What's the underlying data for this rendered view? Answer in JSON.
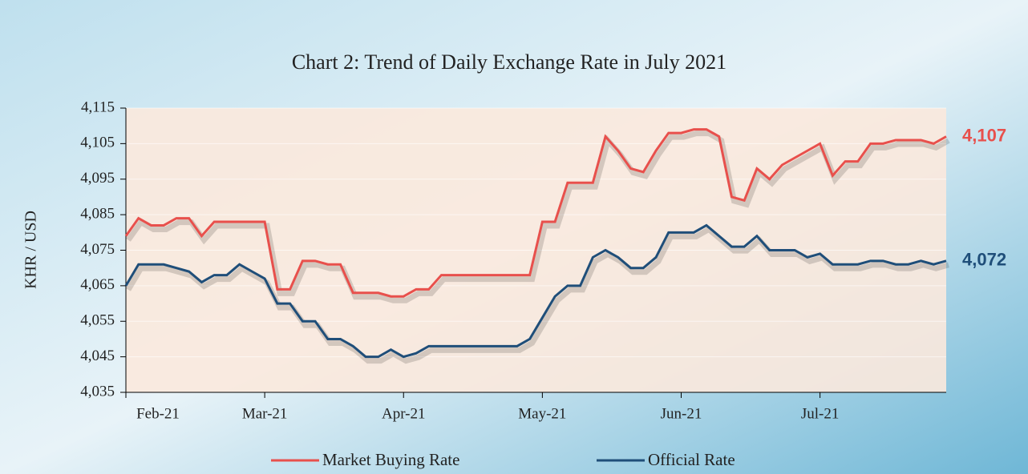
{
  "chart_data": {
    "type": "line",
    "title": "Chart 2: Trend of Daily Exchange Rate in July 2021",
    "y_label": "KHR / USD",
    "categories": [
      "Feb-21",
      null,
      null,
      null,
      null,
      null,
      null,
      null,
      null,
      null,
      null,
      "Mar-21",
      null,
      null,
      null,
      null,
      null,
      null,
      null,
      null,
      null,
      null,
      "Apr-21",
      null,
      null,
      null,
      null,
      null,
      null,
      null,
      null,
      null,
      null,
      "May-21",
      null,
      null,
      null,
      null,
      null,
      null,
      null,
      null,
      null,
      null,
      "Jun-21",
      null,
      null,
      null,
      null,
      null,
      null,
      null,
      null,
      null,
      null,
      "Jul-21",
      null,
      null,
      null,
      null,
      null,
      null,
      null,
      null,
      null,
      null
    ],
    "series": [
      {
        "name": "Market Buying Rate",
        "color": "#e8504c",
        "values": [
          4079,
          4084,
          4082,
          4082,
          4084,
          4084,
          4079,
          4083,
          4083,
          4083,
          4083,
          4083,
          4064,
          4064,
          4072,
          4072,
          4071,
          4071,
          4063,
          4063,
          4063,
          4062,
          4062,
          4064,
          4064,
          4068,
          4068,
          4068,
          4068,
          4068,
          4068,
          4068,
          4068,
          4083,
          4083,
          4094,
          4094,
          4094,
          4107,
          4103,
          4098,
          4097,
          4103,
          4108,
          4108,
          4109,
          4109,
          4107,
          4090,
          4089,
          4098,
          4095,
          4099,
          4101,
          4103,
          4105,
          4096,
          4100,
          4100,
          4105,
          4105,
          4106,
          4106,
          4106,
          4105,
          4107
        ],
        "value_labels": [
          null,
          null,
          null,
          null,
          null,
          null,
          null,
          null,
          null,
          null,
          null,
          null,
          null,
          null,
          null,
          null,
          null,
          null,
          null,
          null,
          null,
          null,
          null,
          null,
          null,
          null,
          null,
          null,
          null,
          null,
          null,
          null,
          null,
          null,
          null,
          null,
          null,
          null,
          null,
          null,
          null,
          null,
          null,
          null,
          null,
          null,
          null,
          null,
          null,
          null,
          null,
          null,
          null,
          null,
          null,
          null,
          null,
          null,
          null,
          null,
          null,
          null,
          null,
          null,
          null,
          "4,107"
        ]
      },
      {
        "name": "Official Rate",
        "color": "#1f4e79",
        "values": [
          4065,
          4071,
          4071,
          4071,
          4070,
          4069,
          4066,
          4068,
          4068,
          4071,
          4069,
          4067,
          4060,
          4060,
          4055,
          4055,
          4050,
          4050,
          4048,
          4045,
          4045,
          4047,
          4045,
          4046,
          4048,
          4048,
          4048,
          4048,
          4048,
          4048,
          4048,
          4048,
          4050,
          4056,
          4062,
          4065,
          4065,
          4073,
          4075,
          4073,
          4070,
          4070,
          4073,
          4080,
          4080,
          4080,
          4082,
          4079,
          4076,
          4076,
          4079,
          4075,
          4075,
          4075,
          4073,
          4074,
          4071,
          4071,
          4071,
          4072,
          4072,
          4071,
          4071,
          4072,
          4071,
          4072
        ],
        "value_labels": [
          null,
          null,
          null,
          null,
          null,
          null,
          null,
          null,
          null,
          null,
          null,
          null,
          null,
          null,
          null,
          null,
          null,
          null,
          null,
          null,
          null,
          null,
          null,
          null,
          null,
          null,
          null,
          null,
          null,
          null,
          null,
          null,
          null,
          null,
          null,
          null,
          null,
          null,
          null,
          null,
          null,
          null,
          null,
          null,
          null,
          null,
          null,
          null,
          null,
          null,
          null,
          null,
          null,
          null,
          null,
          null,
          null,
          null,
          null,
          null,
          null,
          null,
          null,
          null,
          null,
          "4,072"
        ]
      }
    ],
    "ylim": [
      4035,
      4115
    ],
    "yticks": [
      {
        "value": 4035,
        "label": "4,035"
      },
      {
        "value": 4045,
        "label": "4,045"
      },
      {
        "value": 4055,
        "label": "4,055"
      },
      {
        "value": 4065,
        "label": "4,065"
      },
      {
        "value": 4075,
        "label": "4,075"
      },
      {
        "value": 4085,
        "label": "4,085"
      },
      {
        "value": 4095,
        "label": "4,095"
      },
      {
        "value": 4105,
        "label": "4,105"
      },
      {
        "value": 4115,
        "label": "4,115"
      }
    ],
    "grid": true,
    "legend": "bottom"
  }
}
